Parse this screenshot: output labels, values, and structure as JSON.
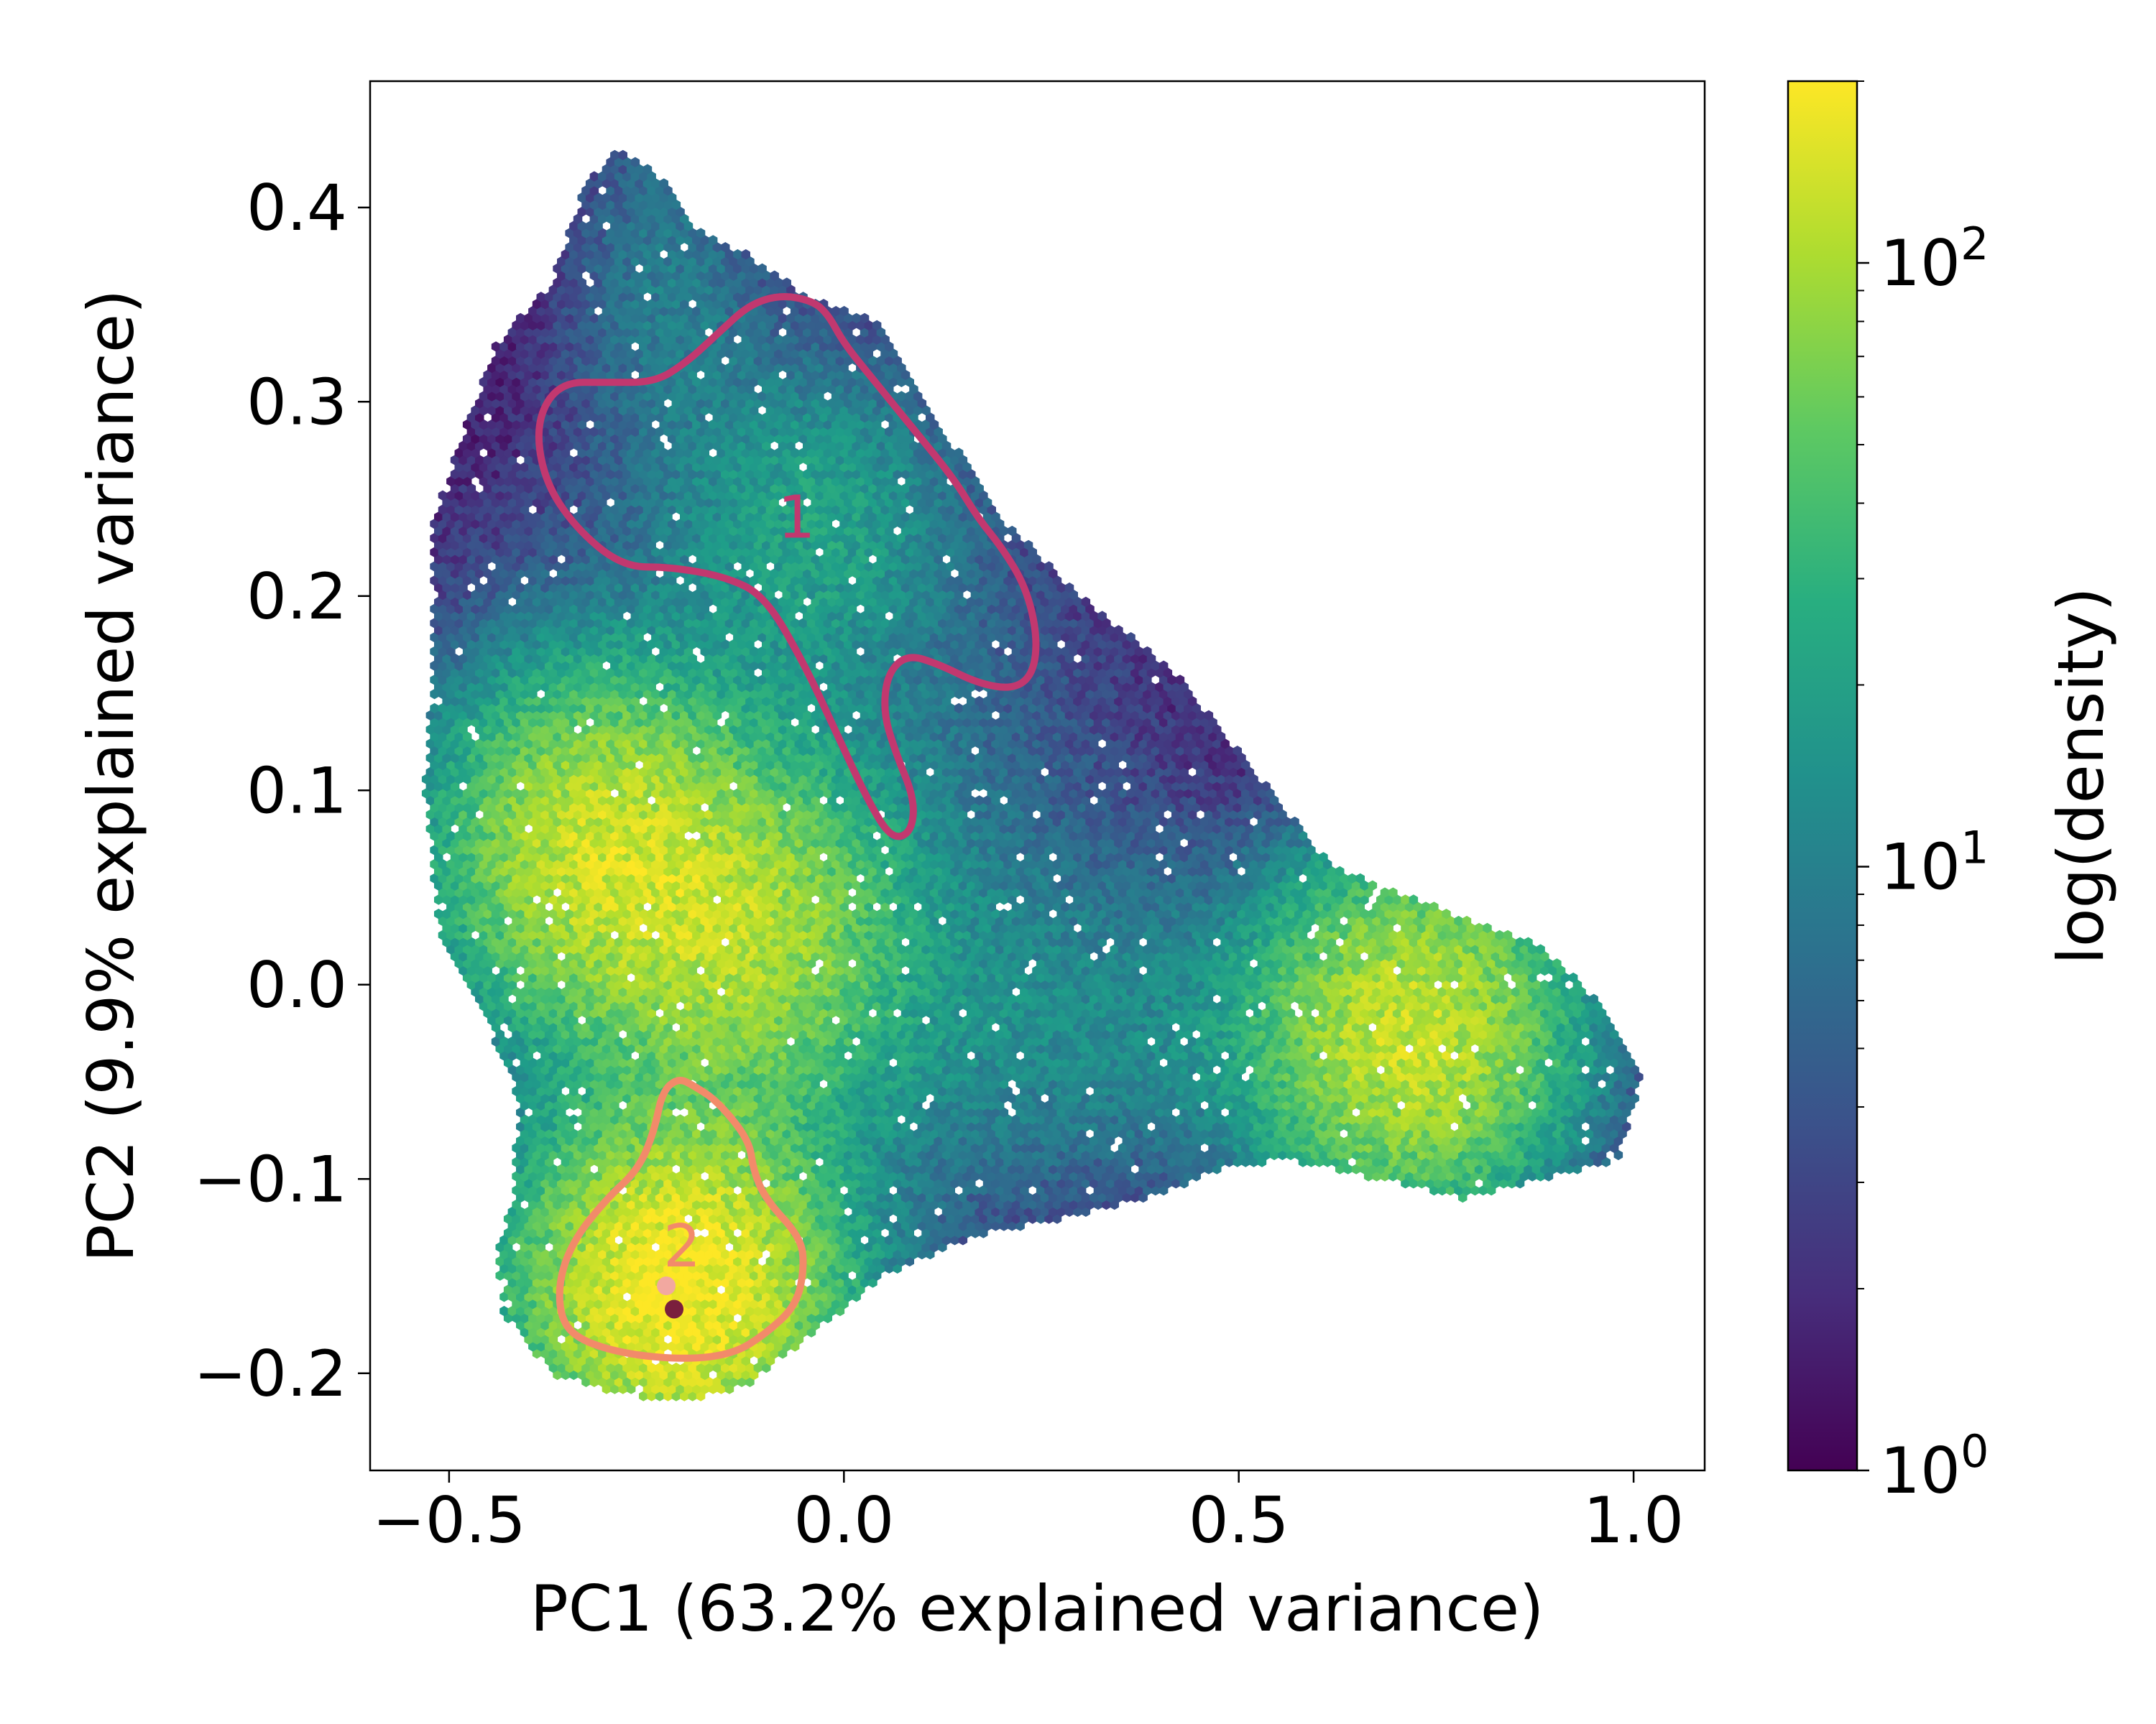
{
  "chart_data": {
    "type": "heatmap",
    "subtype": "hexbin",
    "title": "",
    "xlabel": "PC1 (63.2% explained variance)",
    "ylabel": "PC2 (9.9% explained variance)",
    "xlim": [
      -0.6,
      1.09
    ],
    "ylim": [
      -0.25,
      0.465
    ],
    "xticks": [
      -0.5,
      0.0,
      0.5,
      1.0
    ],
    "xtick_labels": [
      "−0.5",
      "0.0",
      "0.5",
      "1.0"
    ],
    "yticks": [
      -0.2,
      -0.1,
      0.0,
      0.1,
      0.2,
      0.3,
      0.4
    ],
    "ytick_labels": [
      "−0.2",
      "−0.1",
      "0.0",
      "0.1",
      "0.2",
      "0.3",
      "0.4"
    ],
    "grid": false,
    "colormap": "viridis",
    "colorbar": {
      "label": "log(density)",
      "scale": "log",
      "range": [
        1,
        200
      ],
      "ticks": [
        1,
        10,
        100
      ],
      "tick_labels": [
        {
          "base": "10",
          "exp": "0"
        },
        {
          "base": "10",
          "exp": "1"
        },
        {
          "base": "10",
          "exp": "2"
        }
      ]
    },
    "density_modes": [
      {
        "x": -0.31,
        "y": 0.07,
        "peak": 120
      },
      {
        "x": -0.13,
        "y": 0.025,
        "peak": 90
      },
      {
        "x": 0.72,
        "y": -0.025,
        "peak": 130
      },
      {
        "x": -0.21,
        "y": -0.155,
        "peak": 200
      },
      {
        "x": -0.04,
        "y": 0.24,
        "peak": 18
      }
    ],
    "regions": [
      {
        "label": "1",
        "color": "#c2386f",
        "label_position": [
          -0.06,
          0.23
        ],
        "outline": [
          [
            -0.02,
            0.345
          ],
          [
            0.0,
            0.33
          ],
          [
            0.04,
            0.31
          ],
          [
            0.09,
            0.285
          ],
          [
            0.14,
            0.26
          ],
          [
            0.17,
            0.24
          ],
          [
            0.2,
            0.225
          ],
          [
            0.23,
            0.205
          ],
          [
            0.245,
            0.18
          ],
          [
            0.24,
            0.16
          ],
          [
            0.215,
            0.152
          ],
          [
            0.17,
            0.155
          ],
          [
            0.12,
            0.165
          ],
          [
            0.08,
            0.17
          ],
          [
            0.055,
            0.16
          ],
          [
            0.05,
            0.14
          ],
          [
            0.065,
            0.12
          ],
          [
            0.09,
            0.095
          ],
          [
            0.085,
            0.078
          ],
          [
            0.06,
            0.075
          ],
          [
            0.03,
            0.095
          ],
          [
            -0.01,
            0.13
          ],
          [
            -0.05,
            0.165
          ],
          [
            -0.1,
            0.2
          ],
          [
            -0.15,
            0.21
          ],
          [
            -0.22,
            0.215
          ],
          [
            -0.28,
            0.215
          ],
          [
            -0.34,
            0.235
          ],
          [
            -0.38,
            0.26
          ],
          [
            -0.39,
            0.29
          ],
          [
            -0.36,
            0.31
          ],
          [
            -0.3,
            0.31
          ],
          [
            -0.24,
            0.31
          ],
          [
            -0.2,
            0.32
          ],
          [
            -0.16,
            0.335
          ],
          [
            -0.12,
            0.35
          ],
          [
            -0.08,
            0.355
          ],
          [
            -0.04,
            0.352
          ]
        ]
      },
      {
        "label": "2",
        "color": "#f28a6a",
        "label_position": [
          -0.205,
          -0.145
        ],
        "outline": [
          [
            -0.21,
            -0.048
          ],
          [
            -0.19,
            -0.052
          ],
          [
            -0.16,
            -0.06
          ],
          [
            -0.12,
            -0.08
          ],
          [
            -0.115,
            -0.095
          ],
          [
            -0.1,
            -0.11
          ],
          [
            -0.055,
            -0.13
          ],
          [
            -0.05,
            -0.145
          ],
          [
            -0.06,
            -0.165
          ],
          [
            -0.1,
            -0.18
          ],
          [
            -0.14,
            -0.19
          ],
          [
            -0.2,
            -0.193
          ],
          [
            -0.28,
            -0.19
          ],
          [
            -0.34,
            -0.182
          ],
          [
            -0.36,
            -0.17
          ],
          [
            -0.36,
            -0.15
          ],
          [
            -0.34,
            -0.13
          ],
          [
            -0.3,
            -0.11
          ],
          [
            -0.26,
            -0.095
          ],
          [
            -0.24,
            -0.075
          ],
          [
            -0.23,
            -0.055
          ]
        ]
      }
    ],
    "highlighted_points": [
      {
        "x": -0.225,
        "y": -0.155,
        "color": "#f2a8a0"
      },
      {
        "x": -0.215,
        "y": -0.167,
        "color": "#7a1f3d"
      }
    ]
  }
}
